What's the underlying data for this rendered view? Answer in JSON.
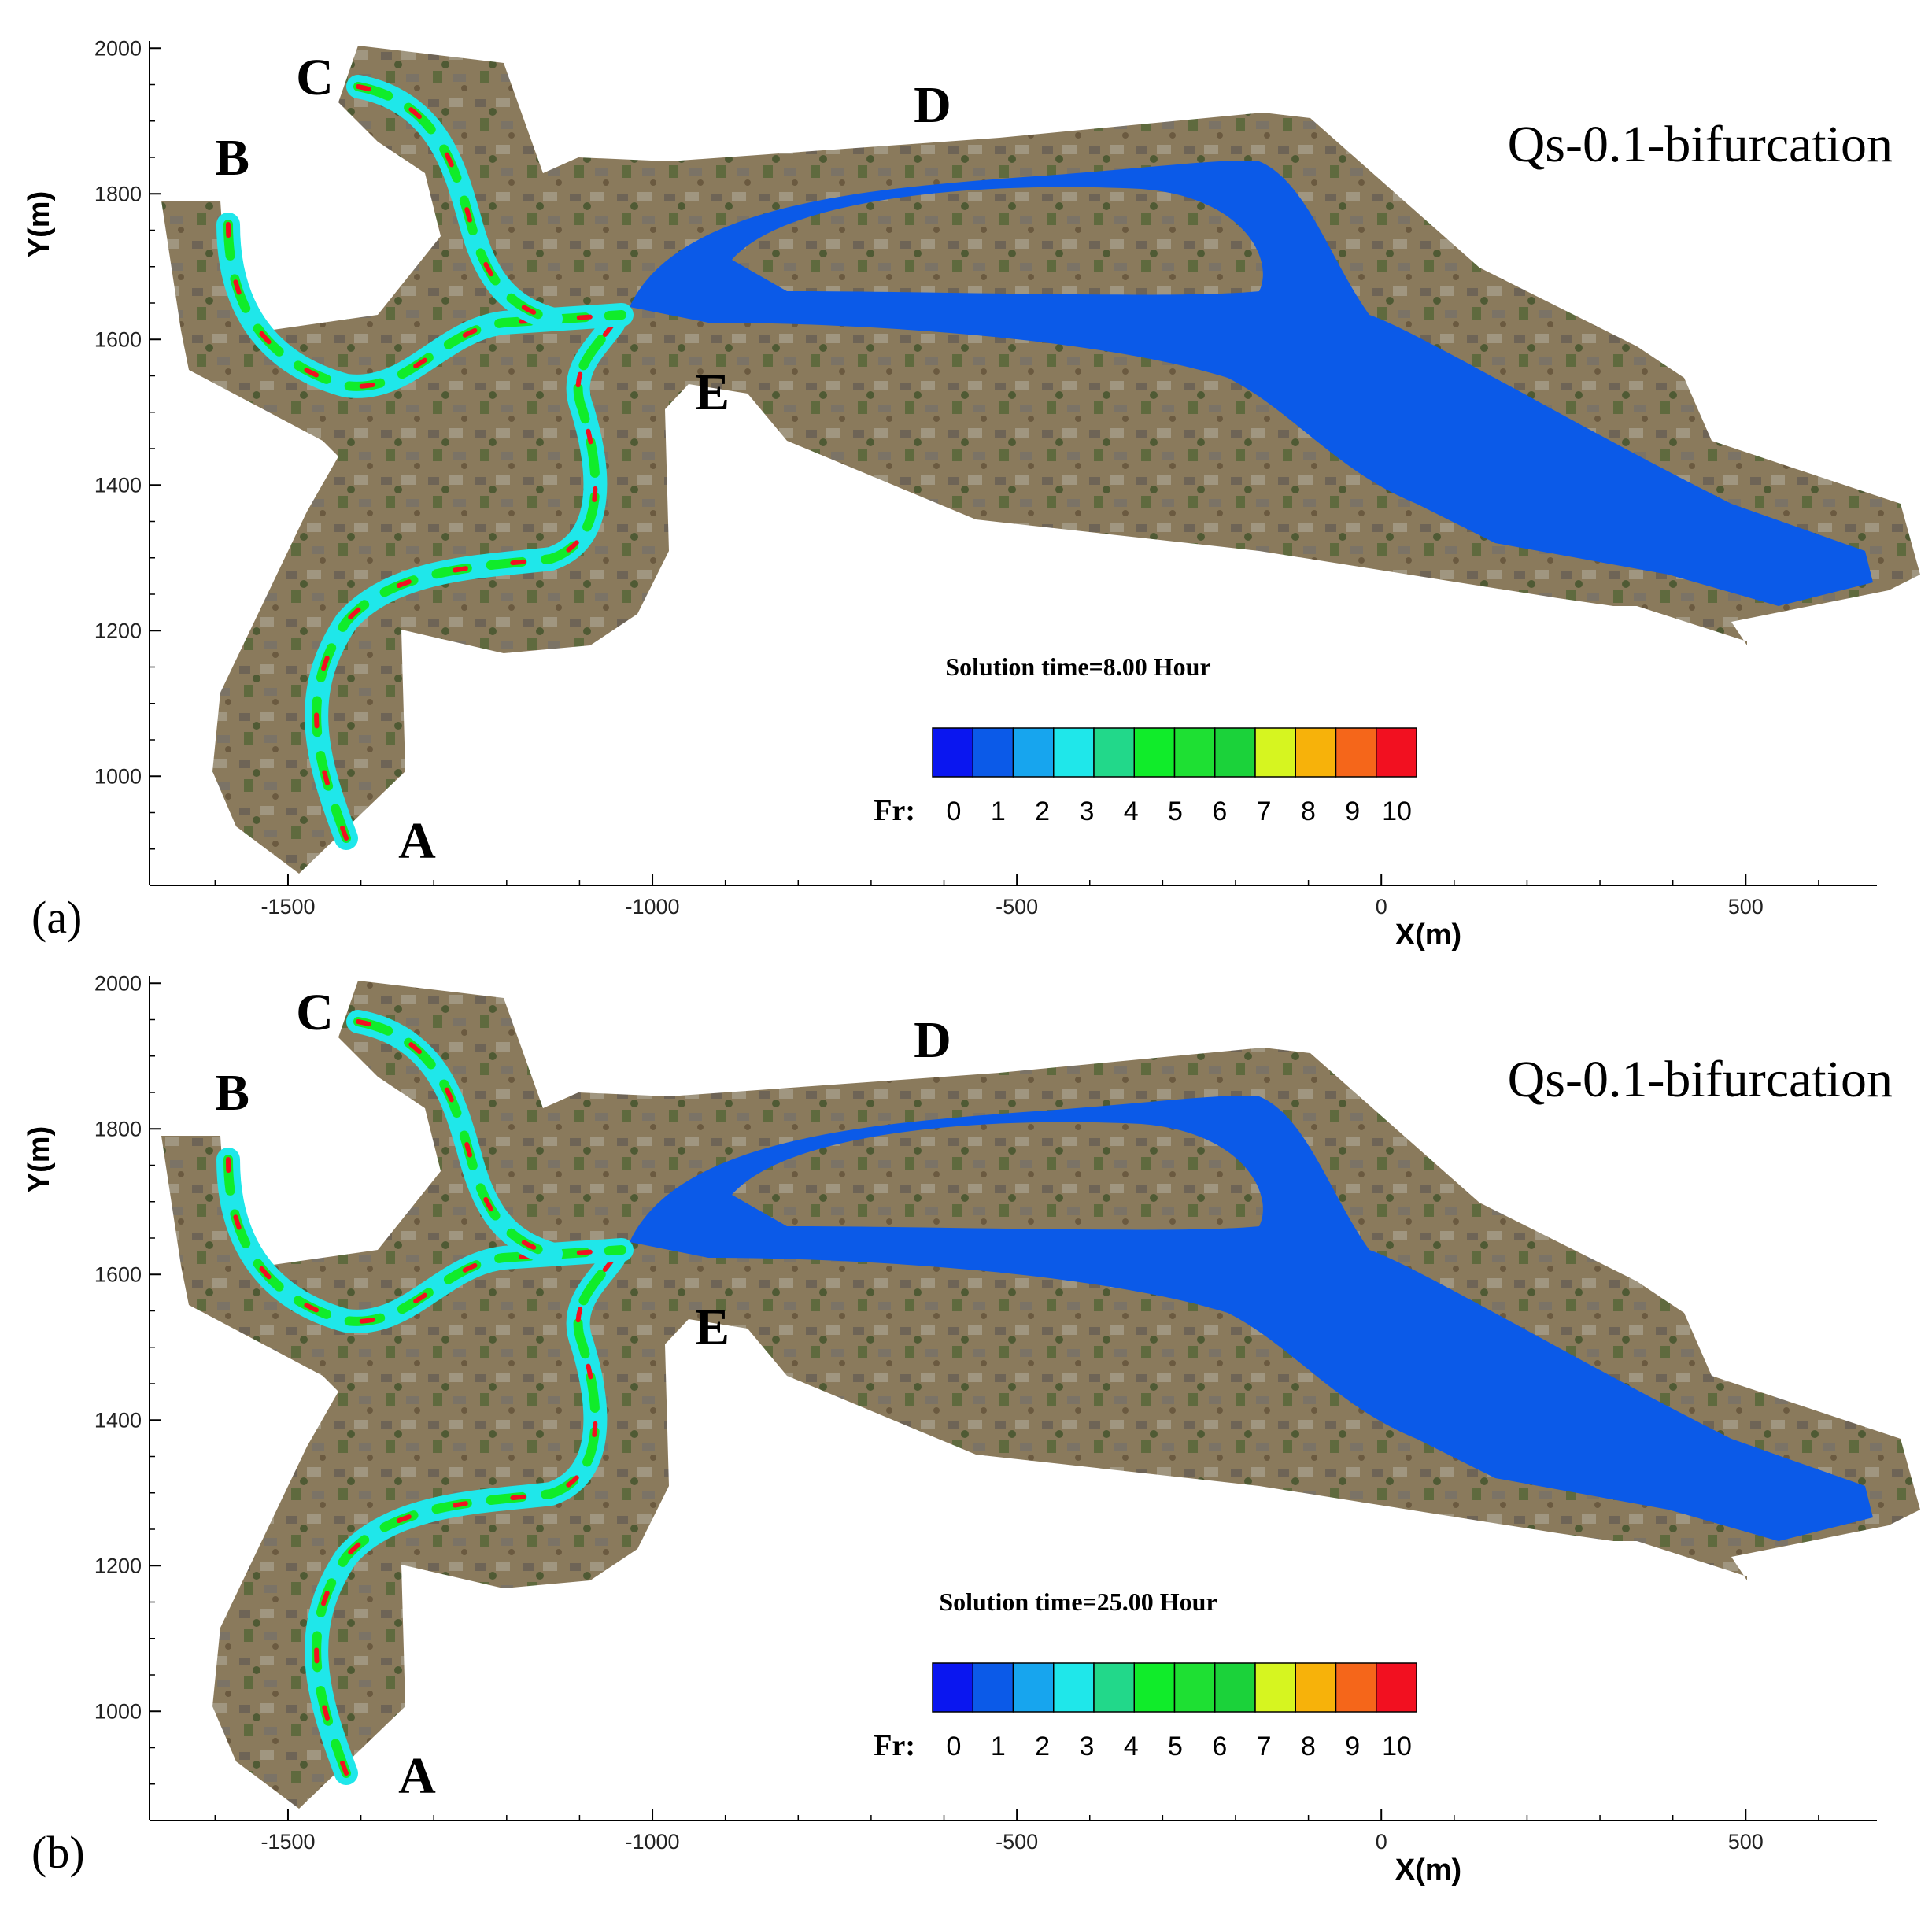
{
  "chart_data": [
    {
      "panel": "(a)",
      "type": "heatmap",
      "title": "Qs-0.1-bifurcation",
      "solution_time": "Solution time=8.00 Hour",
      "xlabel": "X(m)",
      "ylabel": "Y(m)",
      "x_ticks": [
        -1500,
        -1000,
        -500,
        0,
        500
      ],
      "y_ticks": [
        1000,
        1200,
        1400,
        1600,
        1800,
        2000
      ],
      "xlim": [
        -1690,
        680
      ],
      "ylim": [
        850,
        2010
      ],
      "point_labels": [
        "A",
        "B",
        "C",
        "D",
        "E"
      ],
      "colorbar": {
        "label": "Fr:",
        "ticks": [
          "0",
          "1",
          "2",
          "3",
          "4",
          "5",
          "6",
          "7",
          "8",
          "9",
          "10"
        ],
        "colors": [
          "#0a16f0",
          "#0b5ae8",
          "#17a5ee",
          "#1fe7ea",
          "#22d88a",
          "#10ec2a",
          "#1ee033",
          "#1bd23a",
          "#d6f520",
          "#f7b20a",
          "#f5661a",
          "#f21020"
        ]
      }
    },
    {
      "panel": "(b)",
      "type": "heatmap",
      "title": "Qs-0.1-bifurcation",
      "solution_time": "Solution time=25.00 Hour",
      "xlabel": "X(m)",
      "ylabel": "Y(m)",
      "x_ticks": [
        -1500,
        -1000,
        -500,
        0,
        500
      ],
      "y_ticks": [
        1000,
        1200,
        1400,
        1600,
        1800,
        2000
      ],
      "xlim": [
        -1690,
        680
      ],
      "ylim": [
        850,
        2010
      ],
      "point_labels": [
        "A",
        "B",
        "C",
        "D",
        "E"
      ],
      "colorbar": {
        "label": "Fr:",
        "ticks": [
          "0",
          "1",
          "2",
          "3",
          "4",
          "5",
          "6",
          "7",
          "8",
          "9",
          "10"
        ],
        "colors": [
          "#0a16f0",
          "#0b5ae8",
          "#17a5ee",
          "#1fe7ea",
          "#22d88a",
          "#10ec2a",
          "#1ee033",
          "#1bd23a",
          "#d6f520",
          "#f7b20a",
          "#f5661a",
          "#f21020"
        ]
      }
    }
  ]
}
